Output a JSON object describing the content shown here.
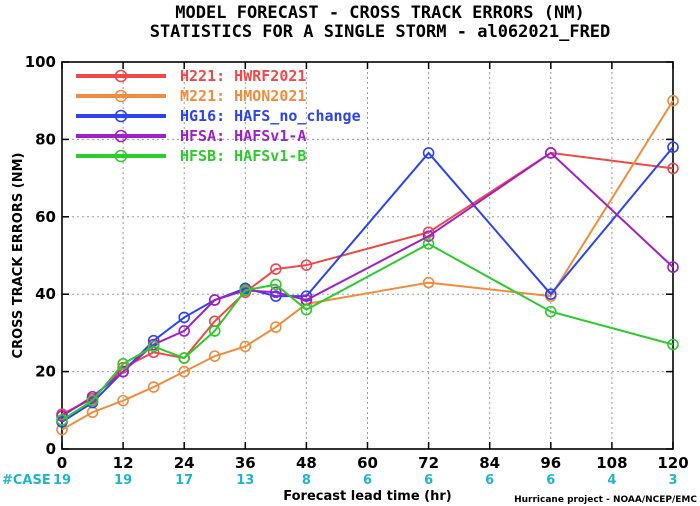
{
  "title_line1": "MODEL FORECAST - CROSS TRACK ERRORS (NM)",
  "title_line2": "STATISTICS FOR A SINGLE STORM - al062021_FRED",
  "credit": "Hurricane project - NOAA/NCEP/EMC",
  "case_label": "#CASE",
  "colors": {
    "case": "#1fb6c9"
  },
  "chart_data": {
    "type": "line",
    "title": "MODEL FORECAST - CROSS TRACK ERRORS (NM)",
    "subtitle": "STATISTICS FOR A SINGLE STORM - al062021_FRED",
    "xlabel": "Forecast lead time (hr)",
    "ylabel": "CROSS TRACK ERRORS (NM)",
    "xlim": [
      0,
      120
    ],
    "ylim": [
      0,
      100
    ],
    "xticks": [
      0,
      12,
      24,
      36,
      48,
      60,
      72,
      84,
      96,
      108,
      120
    ],
    "yticks": [
      0,
      20,
      40,
      60,
      80,
      100
    ],
    "grid": true,
    "legend_position": "top-left",
    "case_counts": [
      {
        "x": 0,
        "n": "19"
      },
      {
        "x": 12,
        "n": "19"
      },
      {
        "x": 24,
        "n": "17"
      },
      {
        "x": 36,
        "n": "13"
      },
      {
        "x": 48,
        "n": "8"
      },
      {
        "x": 60,
        "n": "6"
      },
      {
        "x": 72,
        "n": "6"
      },
      {
        "x": 84,
        "n": "6"
      },
      {
        "x": 96,
        "n": "6"
      },
      {
        "x": 108,
        "n": "4"
      },
      {
        "x": 120,
        "n": "3"
      }
    ],
    "series": [
      {
        "name": "H221: HWRF2021",
        "color": "#f04848",
        "x": [
          0,
          6,
          12,
          18,
          24,
          30,
          36,
          42,
          48,
          72,
          96,
          120
        ],
        "y": [
          9,
          13,
          21,
          25,
          23.5,
          33,
          40.5,
          46.5,
          47.5,
          56,
          76.5,
          72.5
        ]
      },
      {
        "name": "M221: HMON2021",
        "color": "#f08c3c",
        "x": [
          0,
          6,
          12,
          18,
          24,
          30,
          36,
          42,
          48,
          72,
          96,
          120
        ],
        "y": [
          5,
          9.5,
          12.5,
          16,
          20,
          24,
          26.5,
          31.5,
          37.5,
          43,
          39.5,
          90
        ]
      },
      {
        "name": "HG16: HAFS_no_change",
        "color": "#2c44f0",
        "x": [
          0,
          6,
          12,
          18,
          24,
          30,
          36,
          42,
          48,
          72,
          96,
          120
        ],
        "y": [
          7,
          12,
          20,
          28,
          34,
          38.5,
          41.5,
          39.5,
          39.5,
          76.5,
          40,
          78
        ]
      },
      {
        "name": "HFSA: HAFSv1-A",
        "color": "#a020c8",
        "x": [
          0,
          6,
          12,
          18,
          24,
          30,
          36,
          42,
          48,
          72,
          96,
          120
        ],
        "y": [
          8.5,
          13.5,
          20,
          27,
          30.5,
          38.5,
          41,
          40.5,
          38.5,
          55,
          76.5,
          47
        ]
      },
      {
        "name": "HFSB: HAFSv1-B",
        "color": "#2ccc2c",
        "x": [
          0,
          6,
          12,
          18,
          24,
          30,
          36,
          42,
          48,
          72,
          96,
          120
        ],
        "y": [
          7.5,
          12.5,
          22,
          26.5,
          23.5,
          30.5,
          41,
          42.5,
          36,
          53,
          35.5,
          27
        ]
      }
    ]
  }
}
